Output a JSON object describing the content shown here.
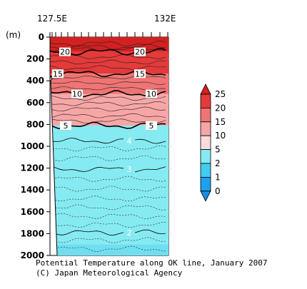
{
  "chart_data": {
    "type": "heatmap",
    "title": "Potential Temperature along OK line, January 2007",
    "credit": "(C) Japan Meteorological Agency",
    "x_axis": {
      "range_lon_east": [
        127.5,
        132
      ],
      "tick_labels": [
        "127.5E",
        "132E"
      ]
    },
    "y_axis": {
      "label": "(m)",
      "range": [
        0,
        2000
      ],
      "direction": "downward",
      "ticks": [
        0,
        200,
        400,
        600,
        800,
        1000,
        1200,
        1400,
        1600,
        1800,
        2000
      ],
      "tick_labels": [
        "0",
        "200",
        "400",
        "600",
        "800",
        "1000",
        "1200",
        "1400",
        "1600",
        "1800",
        "2000"
      ]
    },
    "colorbar": {
      "boundaries": [
        0,
        1,
        2,
        5,
        10,
        15,
        20,
        25
      ],
      "tick_labels": [
        "0",
        "1",
        "2",
        "5",
        "10",
        "15",
        "20",
        "25"
      ],
      "colors": [
        "#1ea0ee",
        "#44ccee",
        "#86eaf2",
        "#fadada",
        "#f7a6a6",
        "#f07474",
        "#e43a3a"
      ],
      "cold_extension_color": "#1a8fe0",
      "warm_extension_color": "#d42020"
    },
    "isotherm_depths_m": [
      {
        "value": 20,
        "depth": 135,
        "label": "20"
      },
      {
        "value": 15,
        "depth": 335,
        "label": "15"
      },
      {
        "value": 10,
        "depth": 520,
        "label": "10"
      },
      {
        "value": 5,
        "depth": 810,
        "label": "5"
      },
      {
        "value": 4,
        "depth": 950,
        "label": "4"
      },
      {
        "value": 3,
        "depth": 1210,
        "label": "3"
      },
      {
        "value": 2,
        "depth": 1790,
        "label": "2"
      }
    ]
  }
}
